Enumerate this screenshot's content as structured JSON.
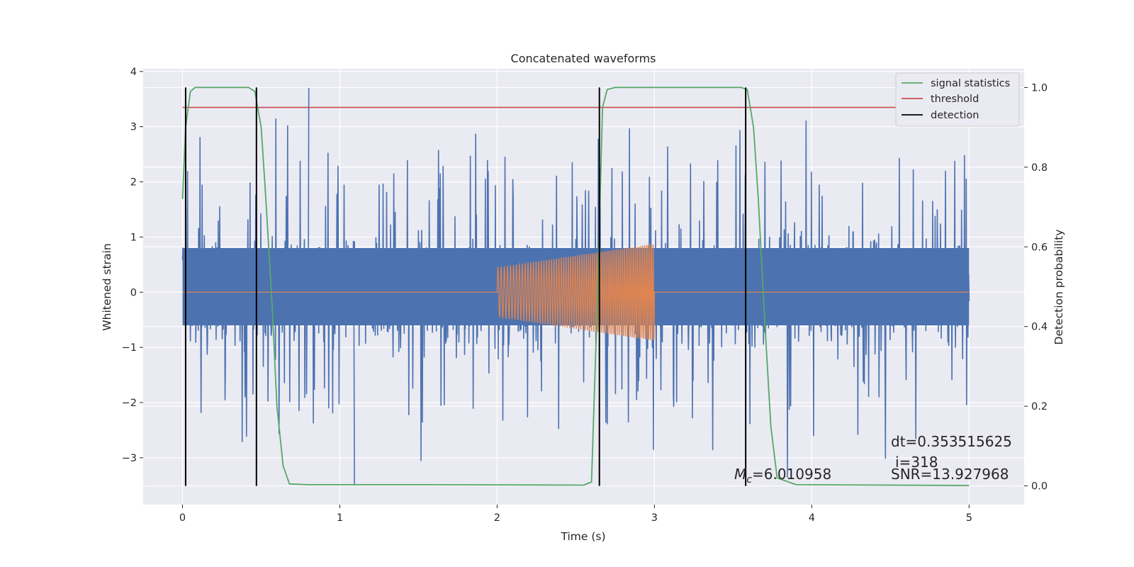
{
  "chart_data": {
    "type": "line",
    "title": "Concatenated waveforms",
    "xlabel": "Time (s)",
    "ylabel": "Whitened strain",
    "y2label": "Detection probability",
    "xlim": [
      -0.25,
      5.35
    ],
    "ylim": [
      -3.85,
      4.05
    ],
    "y2lim": [
      -0.047,
      1.047
    ],
    "xticks": [
      "0",
      "1",
      "2",
      "3",
      "4",
      "5"
    ],
    "yticks": [
      "−3",
      "−2",
      "−1",
      "0",
      "1",
      "2",
      "3",
      "4"
    ],
    "y2ticks": [
      "0.0",
      "0.2",
      "0.4",
      "0.6",
      "0.8",
      "1.0"
    ],
    "grid": true,
    "legend_position": "top-right",
    "legend": [
      {
        "label": "signal statistics",
        "color": "#55a868"
      },
      {
        "label": "threshold",
        "color": "#c44e52"
      },
      {
        "label": "detection",
        "color": "#000000"
      }
    ],
    "colors": {
      "strain": "#4c72b0",
      "template": "#dd8452",
      "signal_statistics": "#55a868",
      "threshold": "#c44e52",
      "detection": "#000000",
      "plot_background": "#eaeaf2"
    },
    "strain_noise": {
      "x_start": 0,
      "x_end": 5,
      "typical_band": [
        -0.6,
        0.8
      ],
      "peak_max": 3.7,
      "peak_min": -3.5
    },
    "template_chirp": {
      "x_start": 2.0,
      "x_end": 3.0,
      "amplitude_start": 0.45,
      "amplitude_end": 0.88,
      "flat_value": 0
    },
    "signal_statistics": {
      "x": [
        0,
        0.02,
        0.05,
        0.08,
        0.42,
        0.46,
        0.5,
        0.53,
        0.57,
        0.6,
        0.64,
        0.68,
        0.8,
        1.6,
        2.55,
        2.6,
        2.64,
        2.67,
        2.7,
        2.75,
        3.55,
        3.59,
        3.63,
        3.66,
        3.7,
        3.74,
        3.78,
        3.9,
        5
      ],
      "y": [
        0.72,
        0.9,
        0.99,
        1.0,
        1.0,
        0.99,
        0.9,
        0.72,
        0.45,
        0.2,
        0.05,
        0.005,
        0.003,
        0.003,
        0.002,
        0.01,
        0.5,
        0.95,
        0.995,
        1.0,
        1.0,
        0.995,
        0.9,
        0.72,
        0.42,
        0.15,
        0.02,
        0.003,
        0.001
      ]
    },
    "threshold": {
      "x": [
        0,
        5
      ],
      "y": 0.95
    },
    "detections": [
      0.02,
      0.47,
      2.65,
      3.58
    ],
    "annotations": {
      "mc": "=6.010958",
      "dt": "dt=0.353515625",
      "i": "i=318",
      "snr": "SNR=13.927968"
    }
  }
}
